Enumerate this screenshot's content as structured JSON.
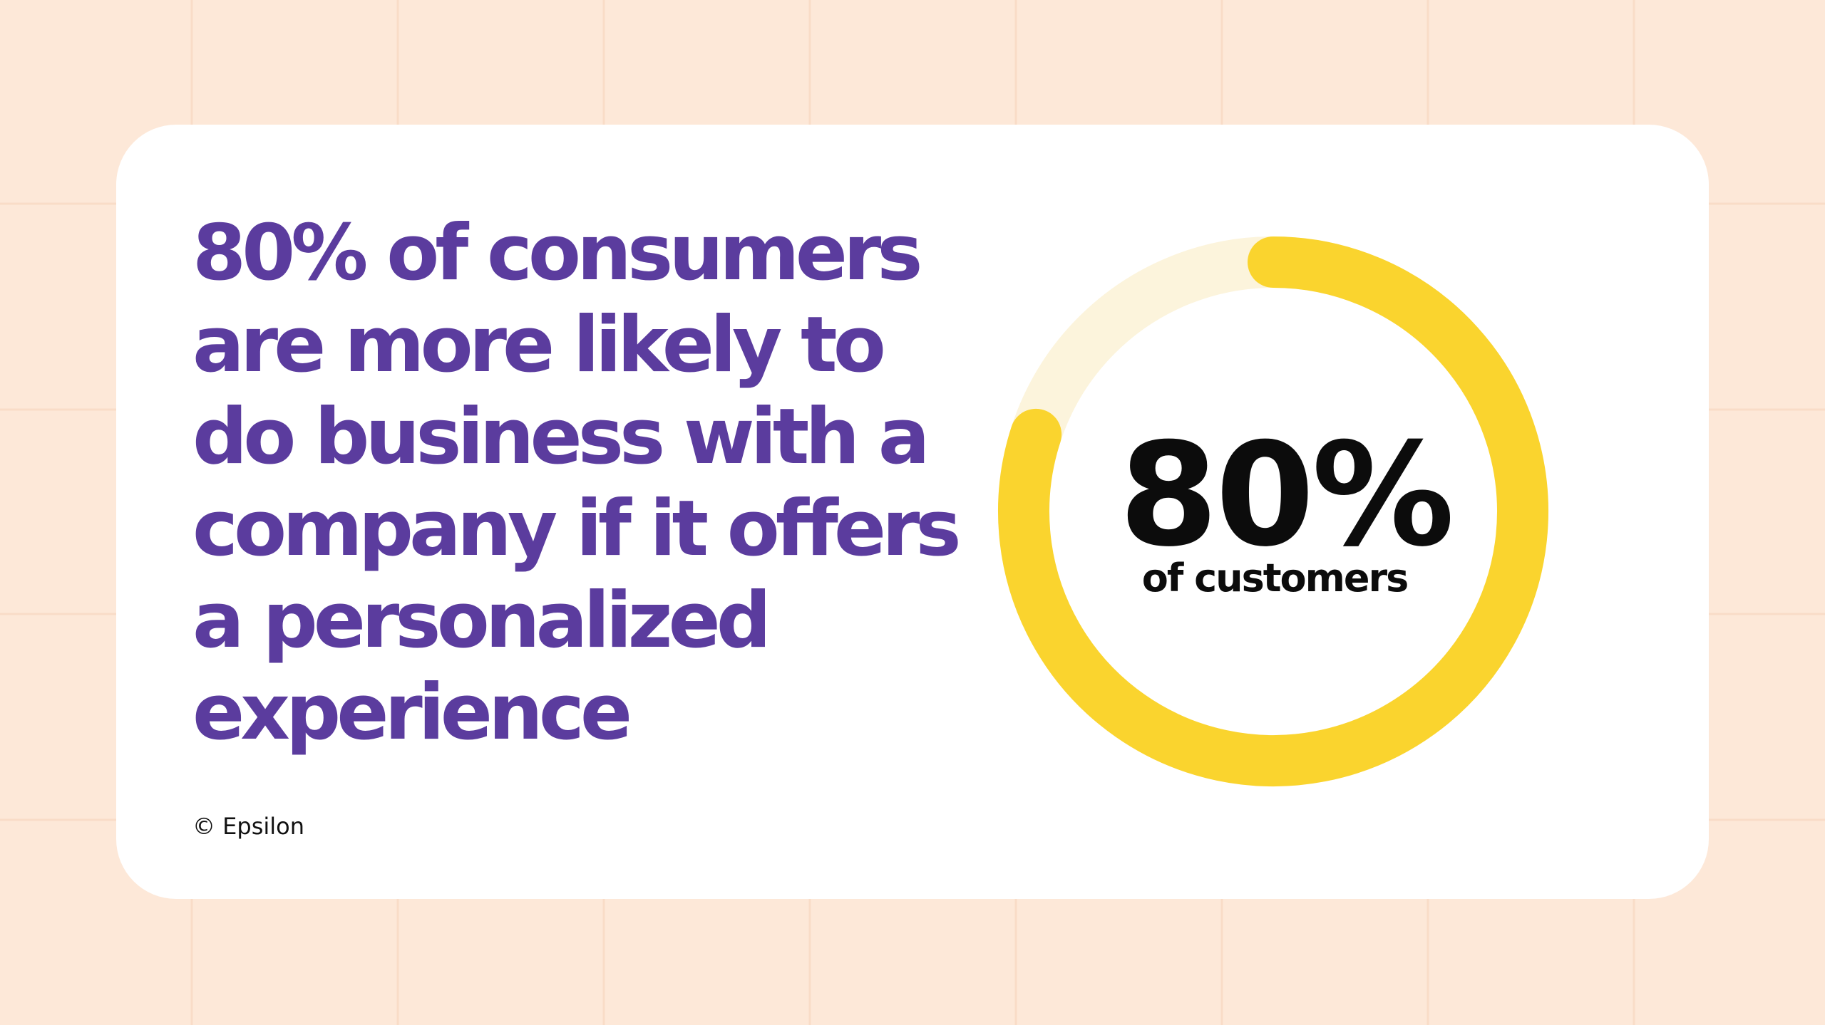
{
  "chart_data": {
    "type": "progress-ring",
    "title": [
      "80% of consumers",
      "are more likely to",
      "do business with a",
      "company if it offers",
      "a personalized",
      "experience"
    ],
    "value": 80,
    "value_label": "80%",
    "subtitle": "of customers",
    "ylim": [
      0,
      100
    ],
    "color": "#fad42e",
    "track_color": "#fcf4dc",
    "source": "© Epsilon"
  }
}
